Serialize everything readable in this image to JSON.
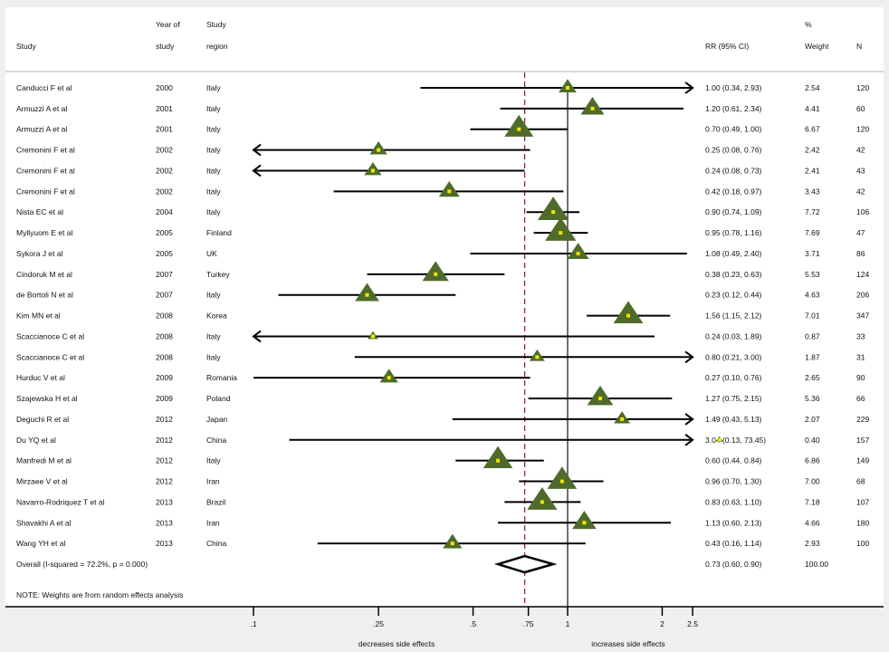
{
  "header": {
    "study": "Study",
    "year_line1": "Year of",
    "year_line2": "study",
    "region_line1": "Study",
    "region_line2": "region",
    "rr": "RR (95% CI)",
    "weight_line1": "%",
    "weight_line2": "Weight",
    "n": "N"
  },
  "chart_data": {
    "type": "forest",
    "x_scale": "log",
    "xlim": [
      0.1,
      2.5
    ],
    "x_ticks": [
      ".1",
      ".25",
      ".5",
      ".75",
      "1",
      "2",
      "2.5"
    ],
    "x_tick_values": [
      0.1,
      0.25,
      0.5,
      0.75,
      1,
      2,
      2.5
    ],
    "null_line": 1,
    "overall_line": 0.73,
    "left_label": "decreases side effects",
    "right_label": "increases side effects",
    "marker_color": "#4e6b2a",
    "point_color": "#f5e400",
    "overall_line_color": "#8b1a2a",
    "studies": [
      {
        "study": "Canducci F et al",
        "year": "2000",
        "region": "Italy",
        "rr": 1.0,
        "lo": 0.34,
        "hi": 2.93,
        "rr_text": "1.00 (0.34, 2.93)",
        "weight": "2.54",
        "n": "120"
      },
      {
        "study": "Armuzzi A et al",
        "year": "2001",
        "region": "Italy",
        "rr": 1.2,
        "lo": 0.61,
        "hi": 2.34,
        "rr_text": "1.20 (0.61, 2.34)",
        "weight": "4.41",
        "n": "60"
      },
      {
        "study": "Armuzzi A et al",
        "year": "2001",
        "region": "Italy",
        "rr": 0.7,
        "lo": 0.49,
        "hi": 1.0,
        "rr_text": "0.70 (0.49, 1.00)",
        "weight": "6.67",
        "n": "120"
      },
      {
        "study": "Cremonini F et al",
        "year": "2002",
        "region": "Italy",
        "rr": 0.25,
        "lo": 0.08,
        "hi": 0.76,
        "rr_text": "0.25 (0.08, 0.76)",
        "weight": "2.42",
        "n": "42"
      },
      {
        "study": "Cremonini F et al",
        "year": "2002",
        "region": "Italy",
        "rr": 0.24,
        "lo": 0.08,
        "hi": 0.73,
        "rr_text": "0.24 (0.08, 0.73)",
        "weight": "2.41",
        "n": "43"
      },
      {
        "study": "Cremonini F et al",
        "year": "2002",
        "region": "Italy",
        "rr": 0.42,
        "lo": 0.18,
        "hi": 0.97,
        "rr_text": "0.42 (0.18, 0.97)",
        "weight": "3.43",
        "n": "42"
      },
      {
        "study": "Nista EC et al",
        "year": "2004",
        "region": "Italy",
        "rr": 0.9,
        "lo": 0.74,
        "hi": 1.09,
        "rr_text": "0.90 (0.74, 1.09)",
        "weight": "7.72",
        "n": "106"
      },
      {
        "study": "Myllyuom E et al",
        "year": "2005",
        "region": "Finland",
        "rr": 0.95,
        "lo": 0.78,
        "hi": 1.16,
        "rr_text": "0.95 (0.78, 1.16)",
        "weight": "7.69",
        "n": "47"
      },
      {
        "study": "Sykora J et al",
        "year": "2005",
        "region": "UK",
        "rr": 1.08,
        "lo": 0.49,
        "hi": 2.4,
        "rr_text": "1.08 (0.49, 2.40)",
        "weight": "3.71",
        "n": "86"
      },
      {
        "study": "Cindoruk M et al",
        "year": "2007",
        "region": "Turkey",
        "rr": 0.38,
        "lo": 0.23,
        "hi": 0.63,
        "rr_text": "0.38 (0.23, 0.63)",
        "weight": "5.53",
        "n": "124"
      },
      {
        "study": "de Bortoli N et al",
        "year": "2007",
        "region": "Italy",
        "rr": 0.23,
        "lo": 0.12,
        "hi": 0.44,
        "rr_text": "0.23 (0.12, 0.44)",
        "weight": "4.63",
        "n": "206"
      },
      {
        "study": "Kim MN et al",
        "year": "2008",
        "region": "Korea",
        "rr": 1.56,
        "lo": 1.15,
        "hi": 2.12,
        "rr_text": "1.56 (1.15, 2.12)",
        "weight": "7.01",
        "n": "347"
      },
      {
        "study": "Scaccianoce C et al",
        "year": "2008",
        "region": "Italy",
        "rr": 0.24,
        "lo": 0.03,
        "hi": 1.89,
        "rr_text": "0.24 (0.03, 1.89)",
        "weight": "0.87",
        "n": "33"
      },
      {
        "study": "Scaccianoce C et al",
        "year": "2008",
        "region": "Italy",
        "rr": 0.8,
        "lo": 0.21,
        "hi": 3.0,
        "rr_text": "0.80 (0.21, 3.00)",
        "weight": "1.87",
        "n": "31"
      },
      {
        "study": "Hurduc V et al",
        "year": "2009",
        "region": "Romania",
        "rr": 0.27,
        "lo": 0.1,
        "hi": 0.76,
        "rr_text": "0.27 (0.10, 0.76)",
        "weight": "2.65",
        "n": "90"
      },
      {
        "study": "Szajewska H et al",
        "year": "2009",
        "region": "Poland",
        "rr": 1.27,
        "lo": 0.75,
        "hi": 2.15,
        "rr_text": "1.27 (0.75, 2.15)",
        "weight": "5.36",
        "n": "66"
      },
      {
        "study": "Deguchi R et al",
        "year": "2012",
        "region": "Japan",
        "rr": 1.49,
        "lo": 0.43,
        "hi": 5.13,
        "rr_text": "1.49 (0.43, 5.13)",
        "weight": "2.07",
        "n": "229"
      },
      {
        "study": "Du YQ et al",
        "year": "2012",
        "region": "China",
        "rr": 3.04,
        "lo": 0.13,
        "hi": 73.45,
        "rr_text": "3.04 (0.13, 73.45)",
        "weight": "0.40",
        "n": "157"
      },
      {
        "study": "Manfredi M et al",
        "year": "2012",
        "region": "Italy",
        "rr": 0.6,
        "lo": 0.44,
        "hi": 0.84,
        "rr_text": "0.60 (0.44, 0.84)",
        "weight": "6.86",
        "n": "149"
      },
      {
        "study": "Mirzaee V et al",
        "year": "2012",
        "region": "Iran",
        "rr": 0.96,
        "lo": 0.7,
        "hi": 1.3,
        "rr_text": "0.96 (0.70, 1.30)",
        "weight": "7.00",
        "n": "68"
      },
      {
        "study": "Navarro-Rodriquez T et al",
        "year": "2013",
        "region": "Brazil",
        "rr": 0.83,
        "lo": 0.63,
        "hi": 1.1,
        "rr_text": "0.83 (0.63, 1.10)",
        "weight": "7.18",
        "n": "107"
      },
      {
        "study": "Shavakhi A et al",
        "year": "2013",
        "region": "Iran",
        "rr": 1.13,
        "lo": 0.6,
        "hi": 2.13,
        "rr_text": "1.13 (0.60, 2.13)",
        "weight": "4.66",
        "n": "180"
      },
      {
        "study": "Wang YH et al",
        "year": "2013",
        "region": "China",
        "rr": 0.43,
        "lo": 0.16,
        "hi": 1.14,
        "rr_text": "0.43 (0.16, 1.14)",
        "weight": "2.93",
        "n": "100"
      }
    ],
    "overall": {
      "label": "Overall  (I-squared = 72.2%, p = 0.000)",
      "rr": 0.73,
      "lo": 0.6,
      "hi": 0.9,
      "rr_text": "0.73 (0.60, 0.90)",
      "weight": "100.00"
    },
    "note": "NOTE: Weights are from random effects analysis"
  }
}
